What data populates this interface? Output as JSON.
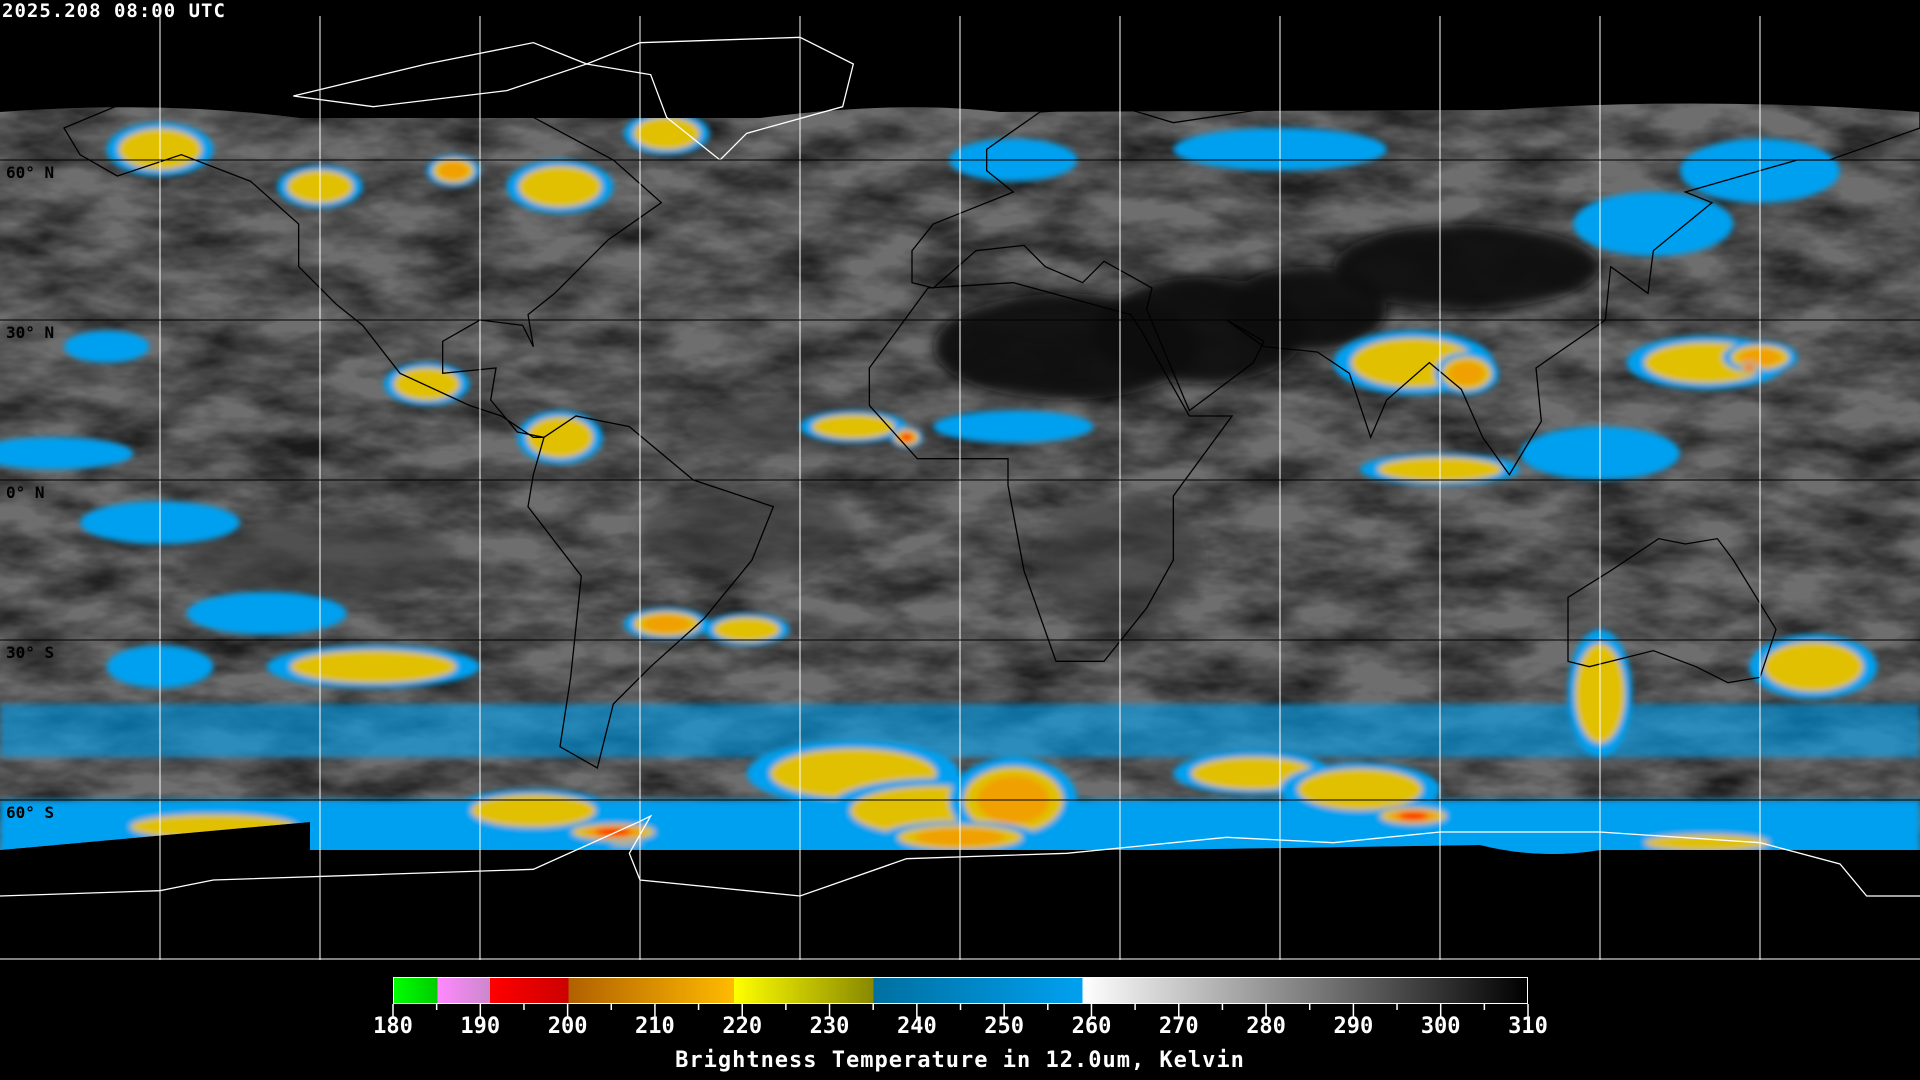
{
  "timestamp": "2025.208 08:00 UTC",
  "map": {
    "projection": "equirectangular",
    "lon_range": [
      -180,
      180
    ],
    "lat_range": [
      -90,
      90
    ],
    "grid_spacing_deg": 30,
    "lat_labels": [
      "60° N",
      "30° N",
      "0° N",
      "30° S",
      "60° S"
    ]
  },
  "colorbar": {
    "title": "Brightness Temperature in 12.0um, Kelvin",
    "range": [
      180,
      310
    ],
    "tick_labels": [
      "180",
      "190",
      "200",
      "210",
      "220",
      "230",
      "240",
      "250",
      "260",
      "270",
      "280",
      "290",
      "300",
      "310"
    ],
    "segments": [
      {
        "from": 180,
        "to": 185,
        "colors": [
          "#00ff00",
          "#00cc00"
        ]
      },
      {
        "from": 185,
        "to": 191,
        "colors": [
          "#ff88ff",
          "#cc88cc"
        ]
      },
      {
        "from": 191,
        "to": 200,
        "colors": [
          "#ff0000",
          "#cc0000"
        ]
      },
      {
        "from": 200,
        "to": 219,
        "colors": [
          "#b06000",
          "#ffbb00"
        ]
      },
      {
        "from": 219,
        "to": 235,
        "colors": [
          "#ffff00",
          "#888800"
        ]
      },
      {
        "from": 235,
        "to": 259,
        "colors": [
          "#0070a0",
          "#00a0f0"
        ]
      },
      {
        "from": 259,
        "to": 310,
        "colors": [
          "#ffffff",
          "#000000"
        ]
      }
    ]
  }
}
